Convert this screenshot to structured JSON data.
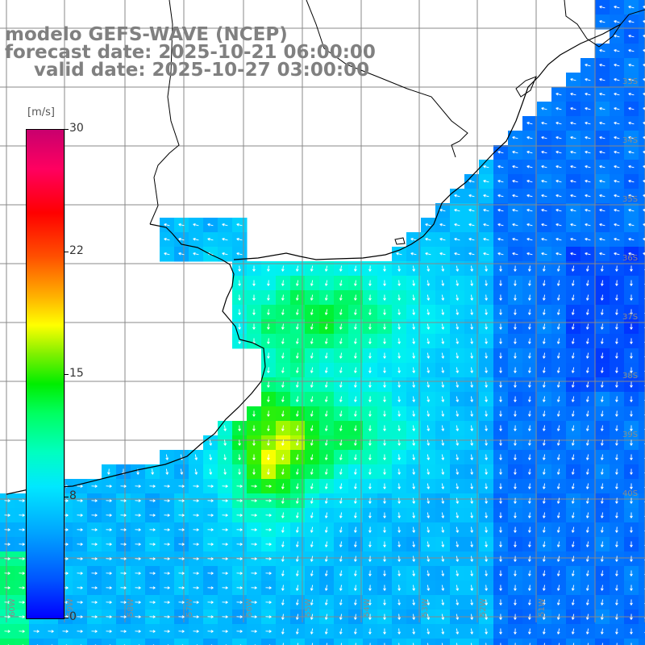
{
  "title": {
    "line1": "modelo GEFS-WAVE (NCEP)",
    "line2": "forecast date: 2025-10-21 06:00:00",
    "line3": "valid date: 2025-10-27 03:00:00"
  },
  "colorbar": {
    "units": "[m/s]",
    "ticks": [
      "30",
      "22",
      "15",
      "8",
      "0"
    ],
    "colors": [
      "#0000ff",
      "#00a8ff",
      "#00e8ff",
      "#00ff60",
      "#00ee00",
      "#ffff00",
      "#ff5000",
      "#ff0000",
      "#c8006e"
    ]
  },
  "grid": {
    "lat_labels": [
      "33S",
      "34S",
      "35S",
      "36S",
      "37S",
      "38S",
      "39S",
      "40S"
    ],
    "lon_labels": [
      "60W",
      "59W",
      "58W",
      "57W",
      "56W",
      "55W",
      "54W",
      "53W",
      "52W",
      "51W"
    ]
  },
  "map": {
    "land_color": "#ffffff",
    "coastline_color": "#000000",
    "grid_color": "#888888",
    "arrow_color": "#ffffff"
  }
}
